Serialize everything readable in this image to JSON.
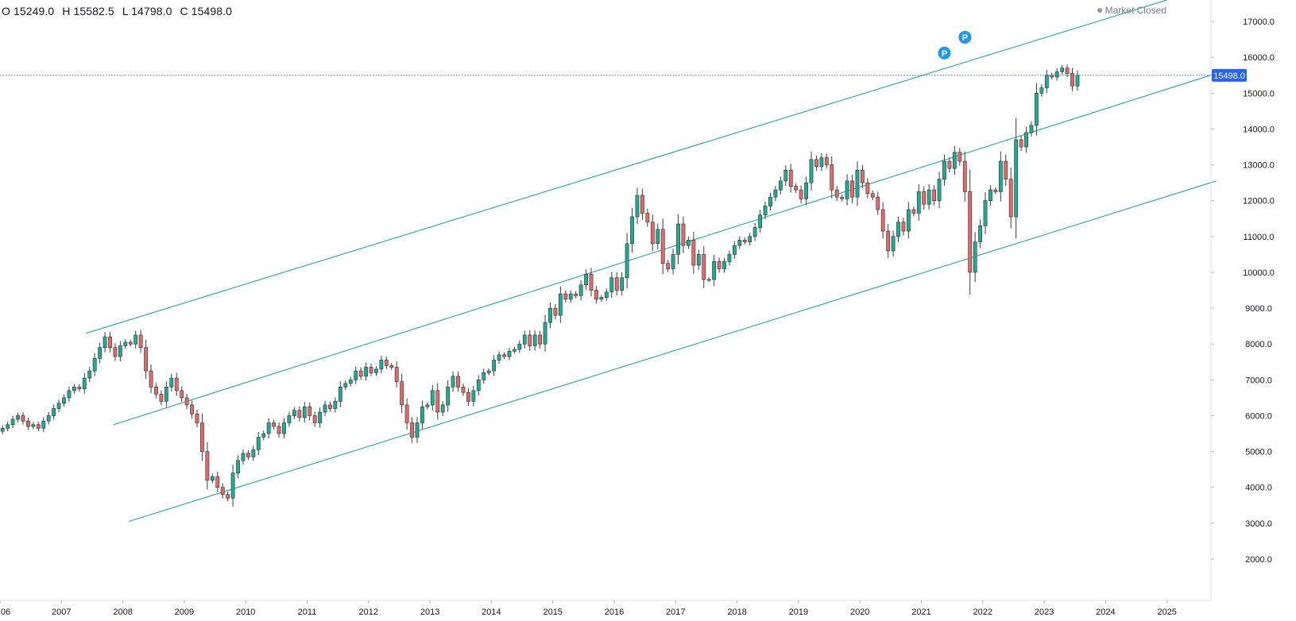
{
  "ohlc": {
    "open": "O 15249.0",
    "high": "H 15582.5",
    "low": "L 14798.0",
    "close": "C 15498.0"
  },
  "market_status": "Market Closed",
  "markers": [
    {
      "label": "P",
      "time": 2021.375,
      "price": 16120
    },
    {
      "label": "P",
      "time": 2021.71,
      "price": 16560
    }
  ],
  "colors": {
    "up": "#26a69a",
    "up_body": "#22ab94",
    "down": "#ef5350",
    "down_body": "#e06b6b",
    "wick": "#3b3b3b",
    "channel": "#26a69a",
    "price_line": "#2962ff",
    "price_badge": "#2962ff",
    "marker": "#2196f3"
  },
  "chart_data": {
    "type": "candlestick",
    "title": "",
    "interval": "monthly",
    "x_axis": {
      "ticks": [
        "06",
        "2007",
        "2008",
        "2009",
        "2010",
        "2011",
        "2012",
        "2013",
        "2014",
        "2015",
        "2016",
        "2017",
        "2018",
        "2019",
        "2020",
        "2021",
        "2022",
        "2023",
        "2024",
        "2025"
      ],
      "range": [
        2006.0,
        2025.9
      ]
    },
    "y_axis": {
      "ticks": [
        "2000.0",
        "3000.0",
        "4000.0",
        "5000.0",
        "6000.0",
        "7000.0",
        "8000.0",
        "9000.0",
        "10000.0",
        "11000.0",
        "12000.0",
        "13000.0",
        "14000.0",
        "15000.0",
        "16000.0",
        "17000.0"
      ],
      "range": [
        1600,
        17600
      ],
      "position": "right"
    },
    "last_price": {
      "value": 15498.0,
      "label": "15498.0"
    },
    "grid": false,
    "legend": "none",
    "start": 2006.0,
    "closes": [
      5650,
      5750,
      5900,
      6000,
      5850,
      5700,
      5750,
      5650,
      5850,
      6000,
      6200,
      6350,
      6500,
      6700,
      6800,
      6750,
      7050,
      7250,
      7600,
      7900,
      8200,
      7900,
      7650,
      7950,
      8050,
      8000,
      8250,
      7900,
      7250,
      6800,
      6600,
      6400,
      6800,
      7050,
      6700,
      6500,
      6300,
      6050,
      5800,
      5000,
      4200,
      4300,
      4000,
      3800,
      3700,
      4400,
      4750,
      4950,
      4850,
      5050,
      5400,
      5500,
      5800,
      5700,
      5500,
      5800,
      6000,
      6150,
      5950,
      6250,
      6000,
      5800,
      6100,
      6300,
      6200,
      6400,
      6800,
      6900,
      7000,
      7250,
      7100,
      7350,
      7200,
      7300,
      7550,
      7400,
      7350,
      6950,
      6300,
      5800,
      5400,
      5800,
      6250,
      6300,
      6700,
      6100,
      6300,
      6800,
      7100,
      6800,
      6650,
      6400,
      6700,
      7000,
      7200,
      7250,
      7550,
      7700,
      7650,
      7800,
      7850,
      8000,
      8250,
      7950,
      8250,
      8000,
      8600,
      9000,
      8800,
      9400,
      9250,
      9400,
      9350,
      9650,
      9950,
      9500,
      9250,
      9300,
      9450,
      9850,
      9500,
      9850,
      10800,
      11550,
      12150,
      11650,
      11400,
      10800,
      11200,
      10250,
      10100,
      10500,
      11350,
      10750,
      10900,
      10200,
      10500,
      9800,
      9800,
      10300,
      10100,
      10300,
      10500,
      10750,
      10900,
      10850,
      11000,
      11250,
      11600,
      11850,
      12100,
      12300,
      12550,
      12850,
      12400,
      12300,
      12050,
      12500,
      13150,
      12950,
      13200,
      13000,
      12300,
      12100,
      12050,
      12550,
      12100,
      12850,
      12500,
      12200,
      12100,
      11750,
      11150,
      10600,
      11000,
      11400,
      11150,
      11750,
      11650,
      12250,
      11900,
      12300,
      12000,
      12600,
      13100,
      12900,
      13350,
      13100,
      12250,
      10000,
      10850,
      11300,
      12000,
      12300,
      12250,
      13100,
      12600,
      11550,
      13700,
      13500,
      13900,
      14100,
      15000,
      15150,
      15500,
      15450,
      15600,
      15700,
      15550,
      15200,
      15500
    ],
    "channels": [
      {
        "name": "",
        "points": [
          [
            2007.4,
            8300
          ],
          [
            2025.0,
            17600
          ]
        ]
      },
      {
        "name": "",
        "points": [
          [
            2007.85,
            5750
          ],
          [
            2025.8,
            15550
          ]
        ]
      },
      {
        "name": "",
        "points": [
          [
            2008.1,
            3050
          ],
          [
            2025.8,
            12550
          ]
        ]
      }
    ]
  }
}
